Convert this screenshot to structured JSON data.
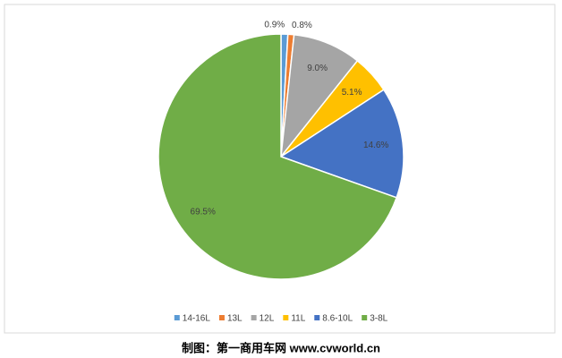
{
  "chart_data": {
    "type": "pie",
    "categories": [
      "14-16L",
      "13L",
      "12L",
      "11L",
      "8.6-10L",
      "3-8L"
    ],
    "values": [
      0.9,
      0.8,
      9.0,
      5.1,
      14.6,
      69.5
    ],
    "value_labels": [
      "0.9%",
      "0.8%",
      "9.0%",
      "5.1%",
      "14.6%",
      "69.5%"
    ],
    "colors": [
      "#5b9bd5",
      "#ed7d31",
      "#a5a5a5",
      "#ffc000",
      "#4472c4",
      "#70ad47"
    ],
    "legend": "bottom",
    "source": "制图：第一商用车网 www.cvworld.cn"
  }
}
